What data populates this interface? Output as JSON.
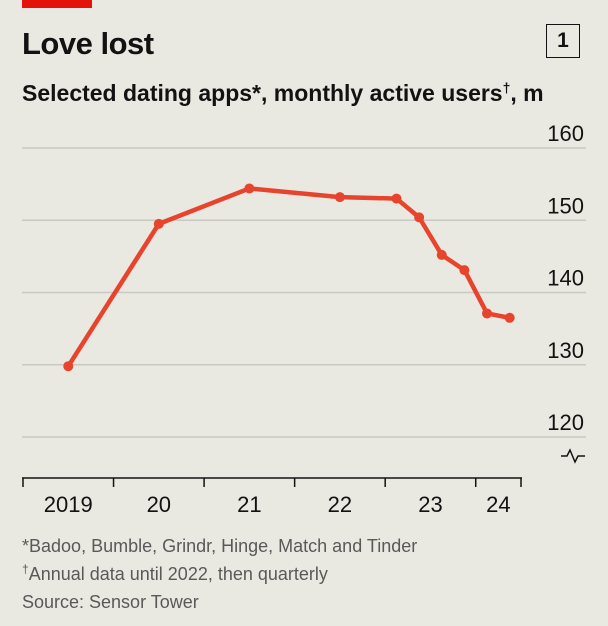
{
  "header": {
    "title": "Love lost",
    "badge": "1",
    "subtitle": "Selected dating apps*, monthly active users",
    "subtitle_dagger": "†",
    "subtitle_unit": ", m"
  },
  "footnotes": {
    "apps_mark": "*",
    "apps": "Badoo, Bumble, Grindr, Hinge, Match and Tinder",
    "data_mark": "†",
    "data_note": "Annual data until 2022, then quarterly",
    "source": "Source: Sensor Tower"
  },
  "colors": {
    "line": "#e8432c",
    "accent_tag": "#e3120b",
    "grid": "#c9c9c4",
    "axis": "#121212"
  },
  "chart_data": {
    "type": "line",
    "title": "Love lost",
    "subtitle": "Selected dating apps*, monthly active users†, m",
    "xlabel": "",
    "ylabel": "",
    "x_ticks": [
      "2019",
      "20",
      "21",
      "22",
      "23",
      "24"
    ],
    "y_ticks": [
      120,
      130,
      140,
      150,
      160
    ],
    "ylim": [
      115,
      160
    ],
    "y_axis_break": true,
    "y_axis_side": "right",
    "grid": true,
    "series": [
      {
        "x": [
          2019.5,
          2020.5,
          2021.5,
          2022.5,
          2023.125,
          2023.375,
          2023.625,
          2023.875,
          2024.125,
          2024.375
        ],
        "values": [
          129.8,
          149.5,
          154.4,
          153.2,
          153.0,
          150.4,
          145.2,
          143.1,
          137.1,
          136.5
        ]
      }
    ]
  }
}
